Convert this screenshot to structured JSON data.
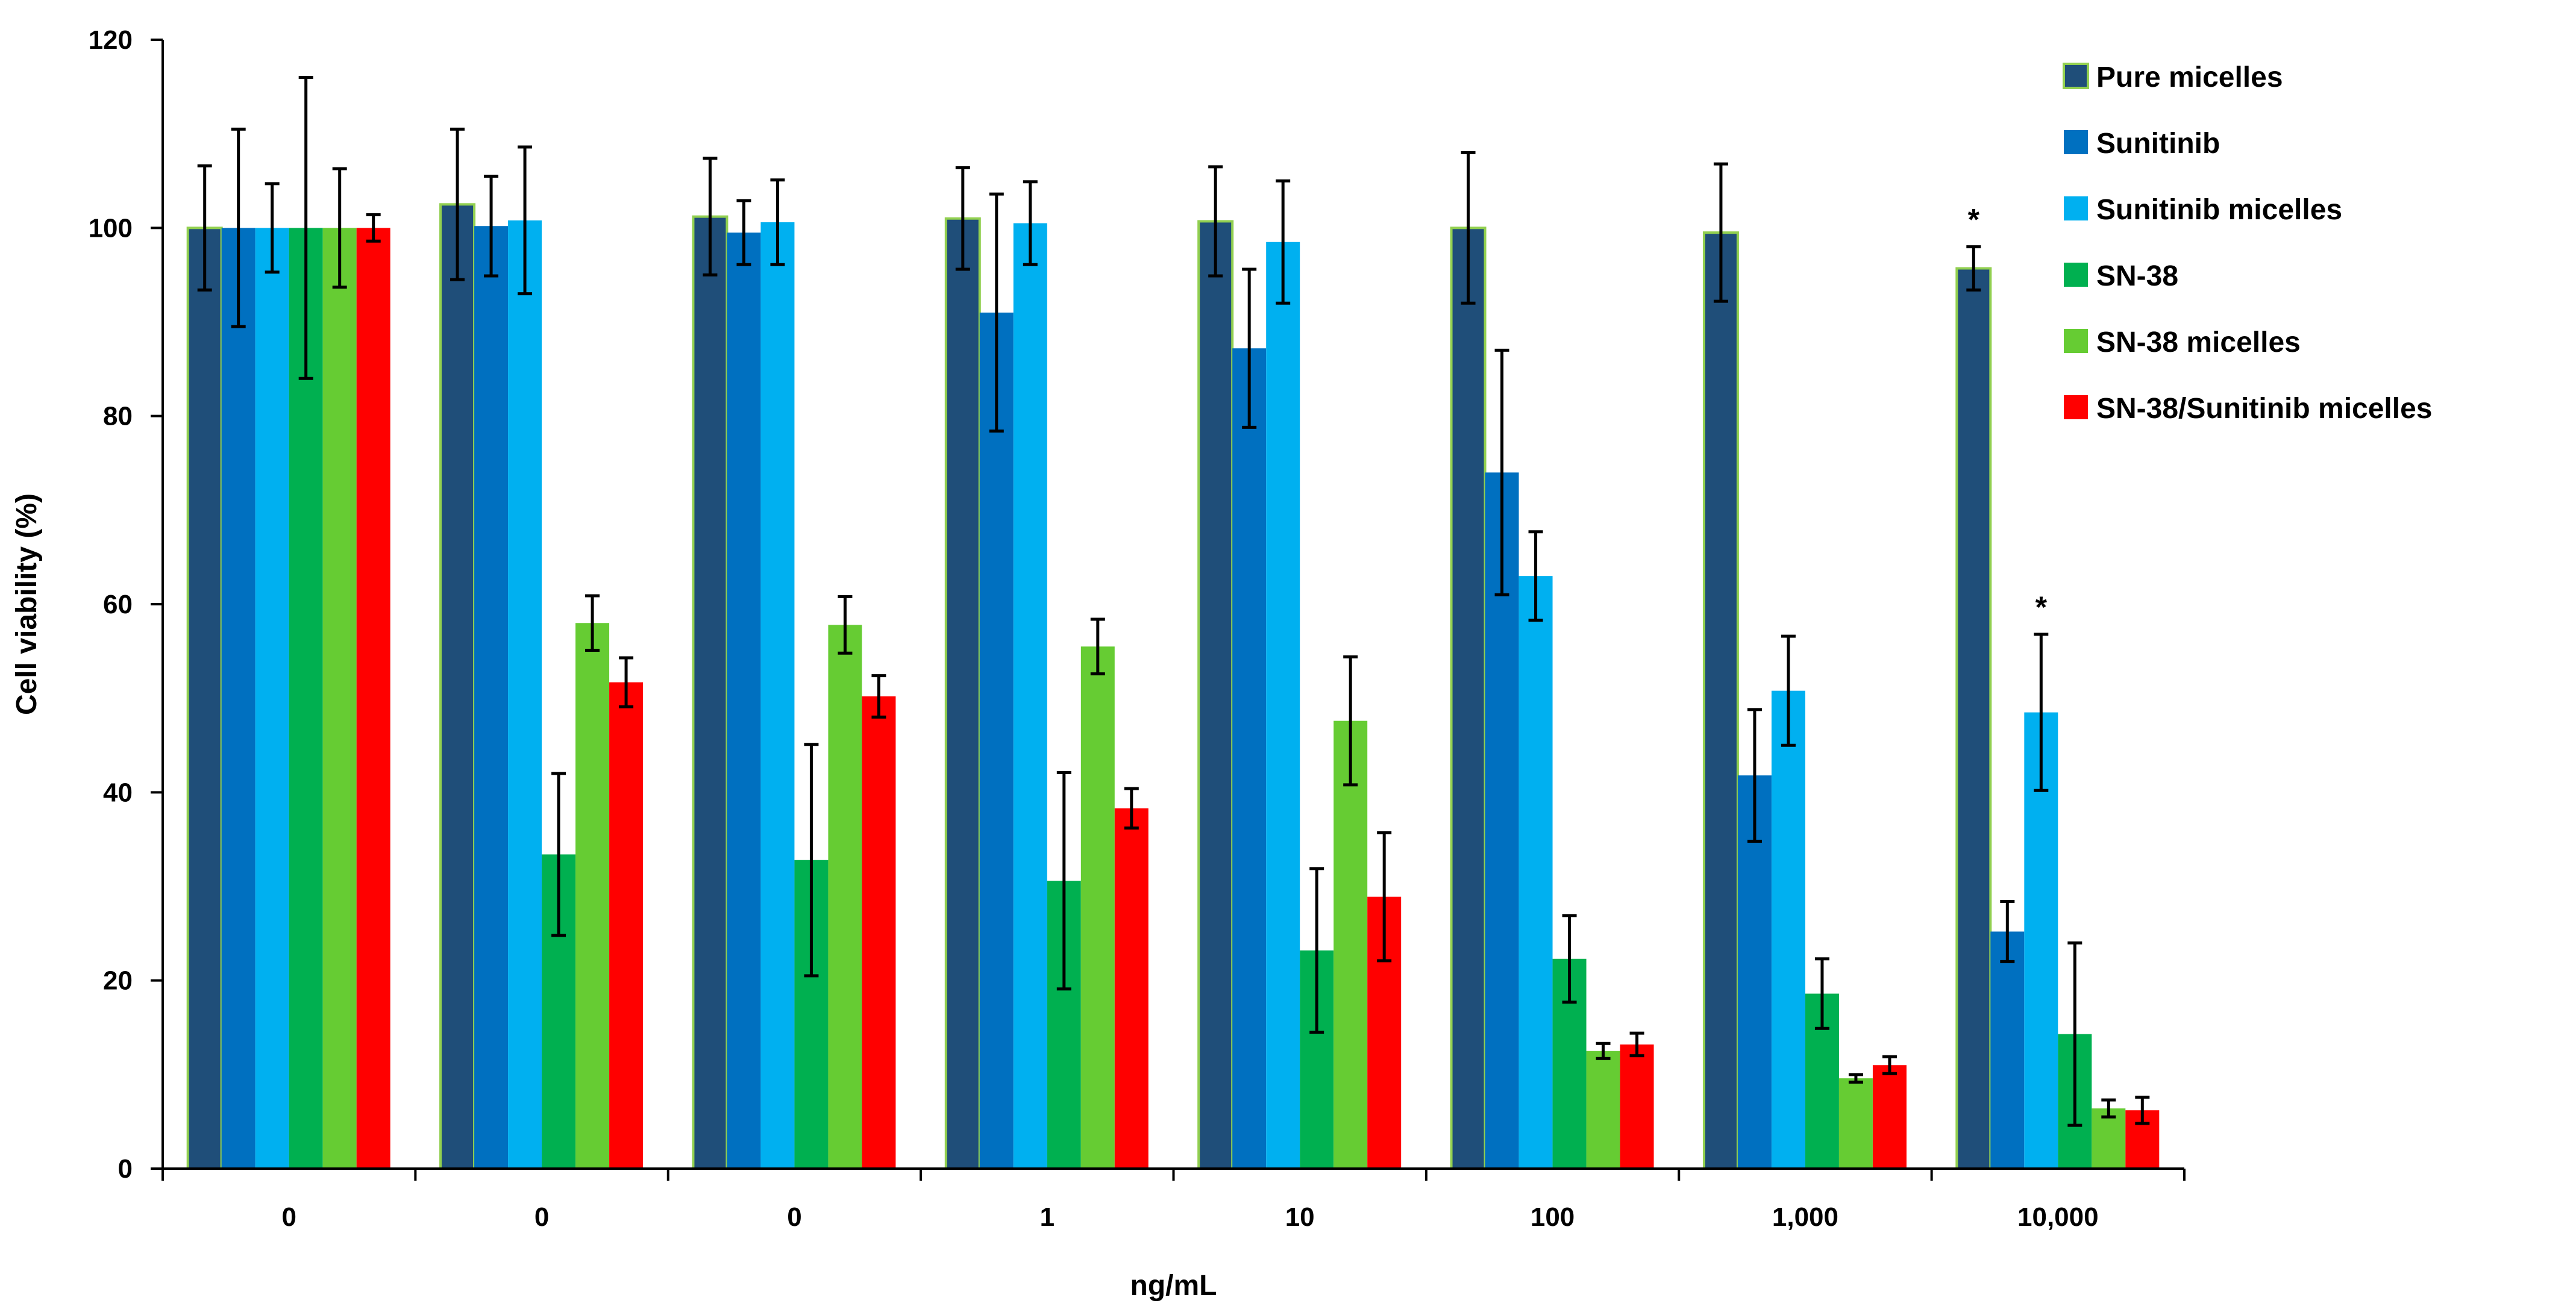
{
  "chart_data": {
    "type": "bar",
    "title": "",
    "xlabel": "ng/mL",
    "ylabel": "Cell viability (%)",
    "ylim": [
      0,
      120
    ],
    "yticks": [
      0,
      20,
      40,
      60,
      80,
      100,
      120
    ],
    "grid": false,
    "legend_position": "top-right",
    "error_bars": true,
    "categories": [
      "0",
      "0",
      "0",
      "1",
      "10",
      "100",
      "1,000",
      "10,000"
    ],
    "series": [
      {
        "name": "Pure micelles",
        "color": "#1F4E79",
        "outline": "#92D050",
        "values": [
          100,
          102.5,
          101.2,
          101,
          100.7,
          100,
          99.5,
          95.7
        ],
        "errors": [
          6.6,
          8,
          6.2,
          5.4,
          5.8,
          8,
          7.3,
          2.3
        ]
      },
      {
        "name": "Sunitinib",
        "color": "#0070C0",
        "values": [
          100,
          100.2,
          99.5,
          91,
          87.2,
          74,
          41.8,
          25.2
        ],
        "errors": [
          10.5,
          5.3,
          3.4,
          12.6,
          8.4,
          13,
          7,
          3.2
        ]
      },
      {
        "name": "Sunitinib micelles",
        "color": "#00B0F0",
        "values": [
          100,
          100.8,
          100.6,
          100.5,
          98.5,
          63,
          50.8,
          48.5
        ],
        "errors": [
          4.7,
          7.8,
          4.5,
          4.4,
          6.5,
          4.7,
          5.8,
          8.3
        ]
      },
      {
        "name": "SN-38",
        "color": "#00B050",
        "values": [
          100,
          33.4,
          32.8,
          30.6,
          23.2,
          22.3,
          18.6,
          14.3
        ],
        "errors": [
          16,
          8.6,
          12.3,
          11.5,
          8.7,
          4.6,
          3.7,
          9.7
        ]
      },
      {
        "name": "SN-38 micelles",
        "color": "#66CC33",
        "values": [
          100,
          58,
          57.8,
          55.5,
          47.6,
          12.5,
          9.6,
          6.4
        ],
        "errors": [
          6.3,
          2.9,
          3,
          2.9,
          6.8,
          0.8,
          0.4,
          0.9
        ]
      },
      {
        "name": "SN-38/Sunitinib micelles",
        "color": "#FF0000",
        "values": [
          100,
          51.7,
          50.2,
          38.3,
          28.9,
          13.2,
          11,
          6.2
        ],
        "errors": [
          1.4,
          2.6,
          2.2,
          2.1,
          6.8,
          1.2,
          0.9,
          1.4
        ]
      }
    ],
    "annotations": [
      {
        "text": "*",
        "category_index": 7,
        "series_index": 0
      },
      {
        "text": "*",
        "category_index": 7,
        "series_index": 2
      }
    ]
  }
}
